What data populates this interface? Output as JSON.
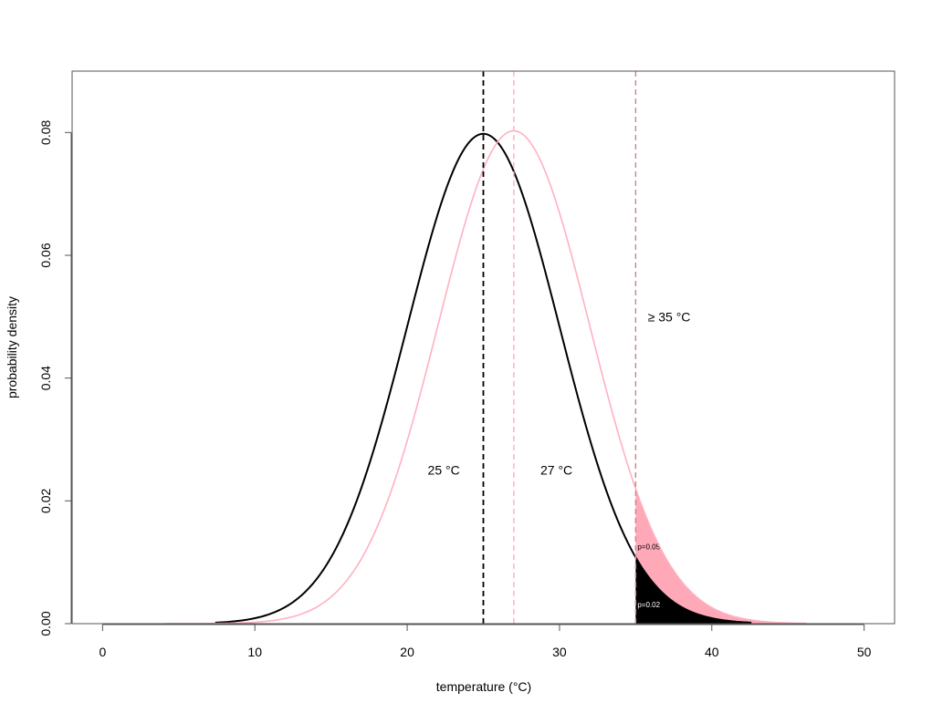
{
  "chart_data": {
    "type": "line",
    "xlabel": "temperature (°C)",
    "ylabel": "probability density",
    "xlim": [
      -2,
      52
    ],
    "ylim": [
      0,
      0.09
    ],
    "x_ticks": [
      0,
      10,
      20,
      30,
      40,
      50
    ],
    "x_tick_labels": [
      "0",
      "10",
      "20",
      "30",
      "40",
      "50"
    ],
    "y_ticks": [
      0,
      0.02,
      0.04,
      0.06,
      0.08
    ],
    "y_tick_labels": [
      "0.00",
      "0.02",
      "0.04",
      "0.06",
      "0.08"
    ],
    "grid": false,
    "series": [
      {
        "mean": 25,
        "sd": 5,
        "color": "#000000",
        "x_range": [
          7.4,
          42.6
        ],
        "x": [
          7.4,
          10,
          15,
          20,
          25,
          30,
          35,
          40,
          42.6
        ],
        "y": [
          0.0003,
          0.0009,
          0.0108,
          0.0484,
          0.0798,
          0.0484,
          0.0108,
          0.0009,
          0.0003
        ]
      },
      {
        "mean": 27,
        "sd": 4.97,
        "color": "#ffb1c1",
        "x_range": [
          4,
          46.2
        ],
        "x": [
          4,
          10,
          15,
          20,
          25,
          27,
          30,
          35,
          40,
          46.2
        ],
        "y": [
          0.0,
          0.0001,
          0.0022,
          0.0296,
          0.0737,
          0.0803,
          0.0669,
          0.0219,
          0.0026,
          0.0001
        ]
      }
    ],
    "vlines": [
      {
        "x": 25,
        "color": "#000000"
      },
      {
        "x": 27,
        "color": "#ffb1c1"
      },
      {
        "x": 35,
        "color": "#c98a9a"
      }
    ],
    "shaded_tails": [
      {
        "from": 35,
        "series_index": 1,
        "color": "#ffa8b8",
        "label": "p=0.05",
        "label_color": "#000000"
      },
      {
        "from": 35,
        "series_index": 0,
        "color": "#000000",
        "label": "p=0.02",
        "label_color": "#ffffff"
      }
    ],
    "annotations": [
      {
        "text": "25 °C",
        "x": 22.4,
        "y": 0.025
      },
      {
        "text": "27 °C",
        "x": 29.8,
        "y": 0.025
      },
      {
        "text": "≥ 35 °C",
        "x": 37.2,
        "y": 0.05
      }
    ]
  }
}
